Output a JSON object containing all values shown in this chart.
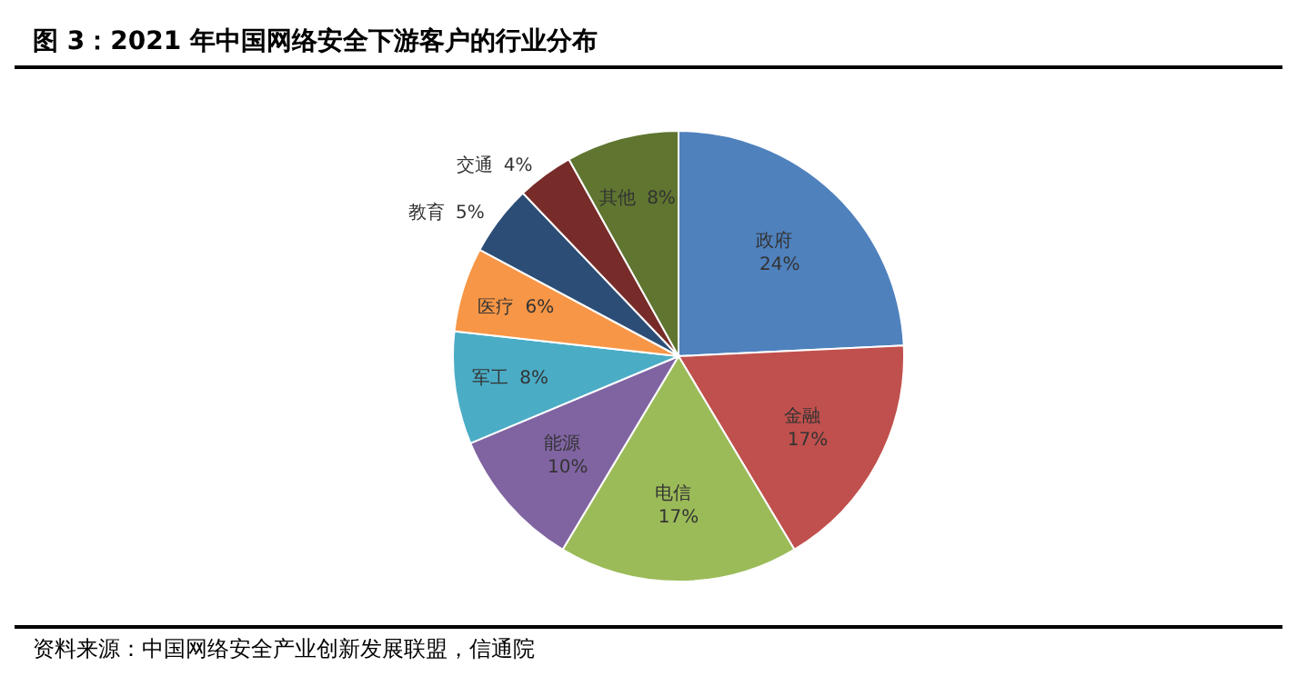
{
  "chart_data": {
    "type": "pie",
    "title": "图 3：2021 年中国网络安全下游客户的行业分布",
    "categories": [
      "政府",
      "金融",
      "电信",
      "能源",
      "军工",
      "医疗",
      "教育",
      "交通",
      "其他"
    ],
    "values": [
      24,
      17,
      17,
      10,
      8,
      6,
      5,
      4,
      8
    ],
    "value_labels": [
      "24%",
      "17%",
      "17%",
      "10%",
      "8%",
      "6%",
      "5%",
      "4%",
      "8%"
    ],
    "colors": [
      "#4f81bd",
      "#c0504d",
      "#9bbb59",
      "#8064a2",
      "#4bacc6",
      "#f79646",
      "#2c4d75",
      "#772c2a",
      "#5f7530"
    ],
    "legend": false,
    "annotations": [
      "资料来源：中国网络安全产业创新发展联盟，信通院"
    ]
  }
}
